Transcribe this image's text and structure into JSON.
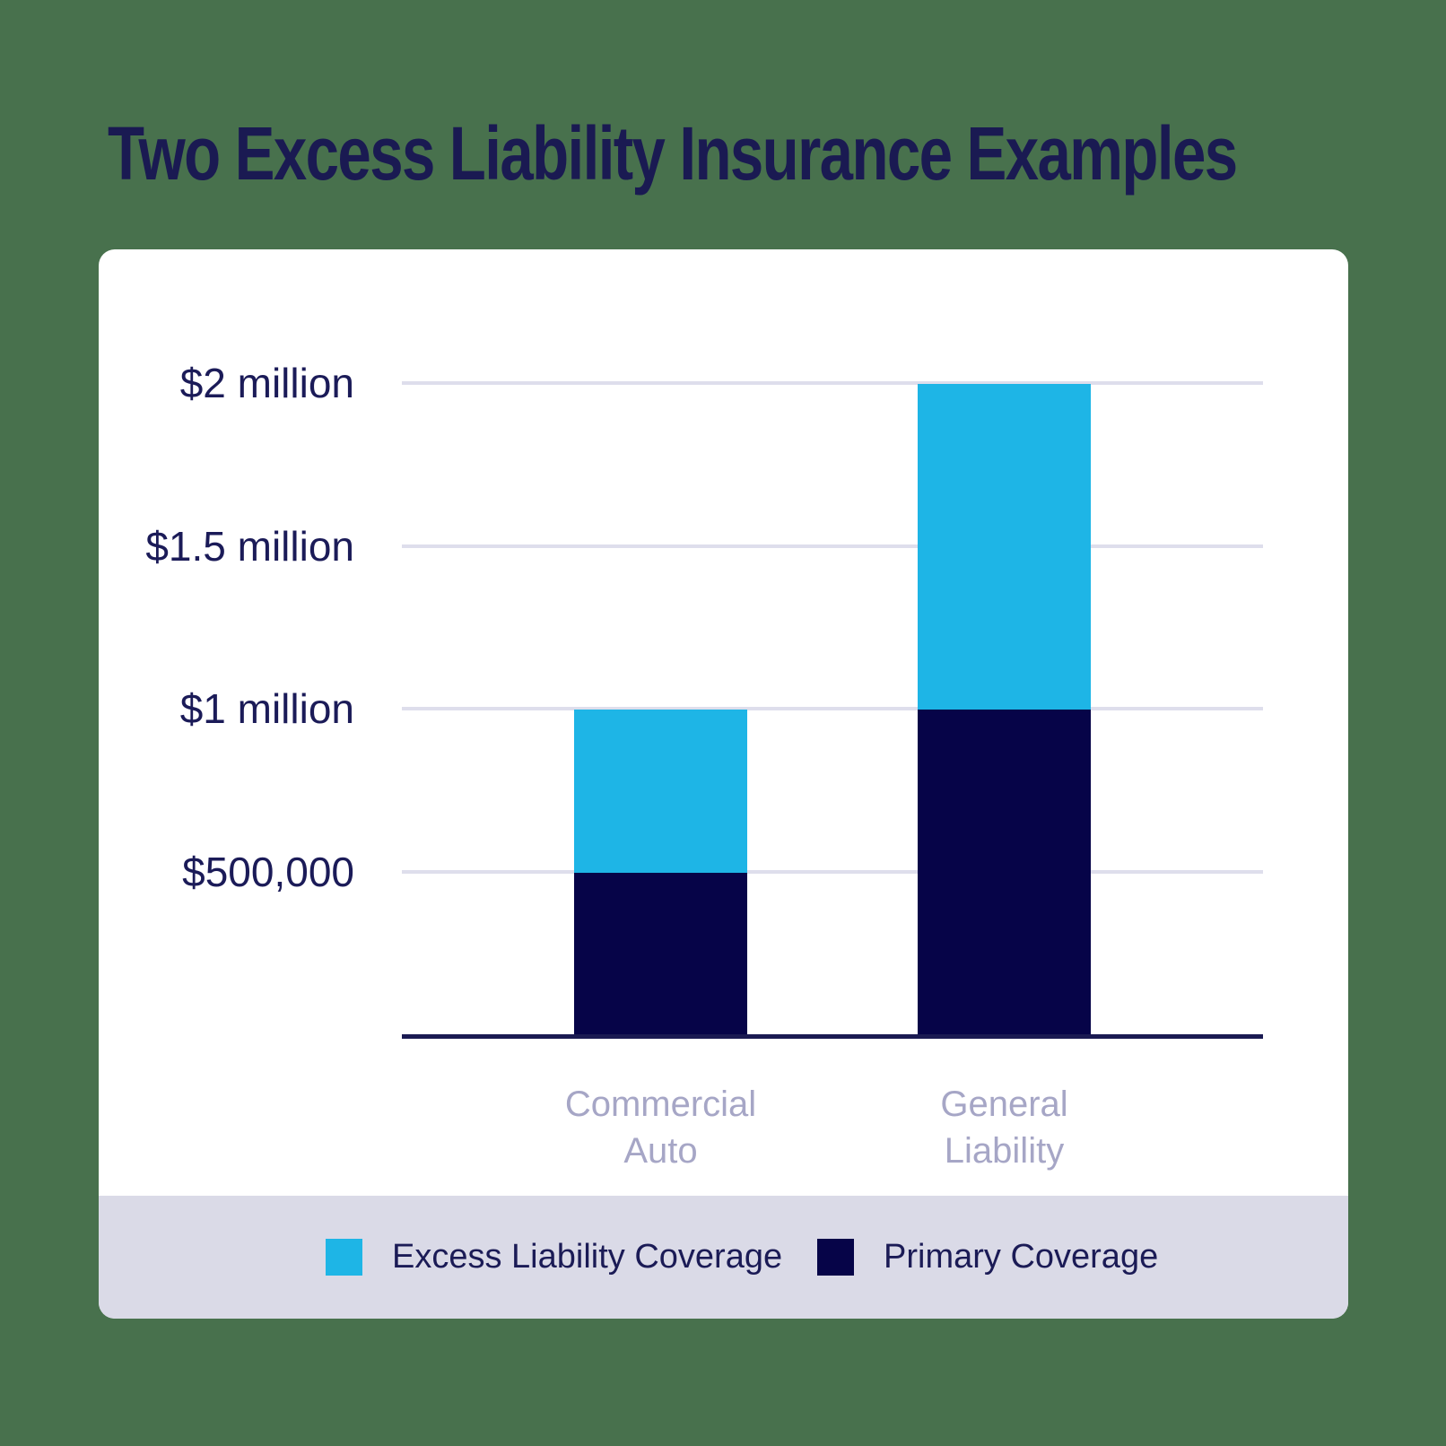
{
  "title": "Two Excess Liability Insurance Examples",
  "colors": {
    "background": "#48714D",
    "card": "#FFFFFF",
    "cyan": "#1EB5E6",
    "navy": "#060448",
    "title_text": "#1A1A52",
    "tick_text": "#1B1B58",
    "category_text": "#A6A6C6",
    "gridline": "#DEDEEC",
    "legend_strip": "#DADAE7",
    "axis_line": "#1A1A52"
  },
  "chart_data": {
    "type": "bar",
    "stacked": true,
    "title": "Two Excess Liability Insurance Examples",
    "categories": [
      "Commercial Auto",
      "General Liability"
    ],
    "series": [
      {
        "name": "Primary Coverage",
        "color_key": "navy",
        "values": [
          500000,
          1000000
        ]
      },
      {
        "name": "Excess Liability Coverage",
        "color_key": "cyan",
        "values": [
          500000,
          1000000
        ]
      }
    ],
    "y_ticks": [
      {
        "label": "$2 million",
        "value": 2000000
      },
      {
        "label": "$1.5 million",
        "value": 1500000
      },
      {
        "label": "$1 million",
        "value": 1000000
      },
      {
        "label": "$500,000",
        "value": 500000
      }
    ],
    "ylim": [
      0,
      2200000
    ],
    "xlabel": "",
    "ylabel": "",
    "grid": true,
    "legend_position": "bottom"
  },
  "legend": {
    "items": [
      {
        "label": "Excess Liability Coverage",
        "swatch": "cyan"
      },
      {
        "label": "Primary Coverage",
        "swatch": "navy"
      }
    ]
  }
}
